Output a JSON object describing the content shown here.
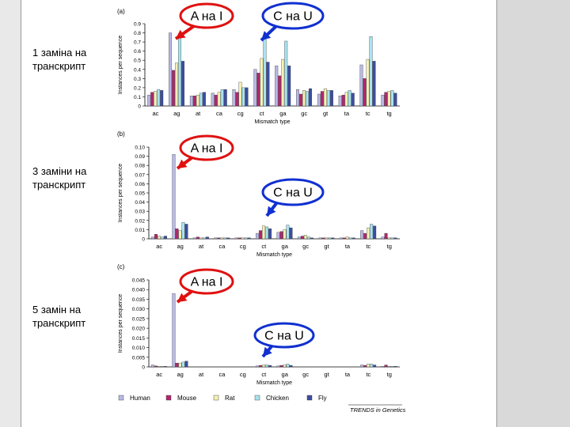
{
  "side_labels": [
    {
      "text": "1 заміна на транскрипт"
    },
    {
      "text": "3 заміни на транскрипт"
    },
    {
      "text": "5 замін на транскрипт"
    }
  ],
  "callouts": {
    "a_to_i": "A на I",
    "c_to_u": "C на U"
  },
  "callout_colors": {
    "a_to_i": "#e01010",
    "c_to_u": "#1030d0"
  },
  "footer": {
    "credit": "TRENDS in Genetics"
  },
  "legend": [
    {
      "name": "Human",
      "color": "#b9b9e6"
    },
    {
      "name": "Mouse",
      "color": "#b0286e"
    },
    {
      "name": "Rat",
      "color": "#f6f0b4"
    },
    {
      "name": "Chicken",
      "color": "#a8e3ef"
    },
    {
      "name": "Fly",
      "color": "#3c4ea0"
    }
  ],
  "chart_data": [
    {
      "type": "bar",
      "panel": "(a)",
      "ylabel": "Instances per sequence",
      "xlabel": "Mismatch type",
      "ylim": [
        0,
        0.9
      ],
      "yticks": [
        "0",
        "0.1",
        "0.2",
        "0.3",
        "0.4",
        "0.5",
        "0.6",
        "0.7",
        "0.8",
        "0.9"
      ],
      "categories": [
        "ac",
        "ag",
        "at",
        "ca",
        "cg",
        "ct",
        "ga",
        "gc",
        "gt",
        "ta",
        "tc",
        "tg"
      ],
      "series": [
        {
          "name": "Human",
          "values": [
            0.12,
            0.8,
            0.11,
            0.14,
            0.18,
            0.4,
            0.44,
            0.18,
            0.13,
            0.11,
            0.45,
            0.12
          ]
        },
        {
          "name": "Mouse",
          "values": [
            0.15,
            0.39,
            0.11,
            0.12,
            0.15,
            0.36,
            0.33,
            0.13,
            0.16,
            0.12,
            0.3,
            0.15
          ]
        },
        {
          "name": "Rat",
          "values": [
            0.16,
            0.47,
            0.12,
            0.15,
            0.26,
            0.52,
            0.51,
            0.17,
            0.19,
            0.15,
            0.51,
            0.16
          ]
        },
        {
          "name": "Chicken",
          "values": [
            0.18,
            0.74,
            0.14,
            0.18,
            0.2,
            0.73,
            0.71,
            0.16,
            0.17,
            0.17,
            0.76,
            0.17
          ]
        },
        {
          "name": "Fly",
          "values": [
            0.17,
            0.49,
            0.15,
            0.18,
            0.2,
            0.48,
            0.44,
            0.19,
            0.17,
            0.14,
            0.49,
            0.14
          ]
        }
      ]
    },
    {
      "type": "bar",
      "panel": "(b)",
      "ylabel": "Instances per sequence",
      "xlabel": "Mismatch type",
      "ylim": [
        0,
        0.1
      ],
      "yticks": [
        "0",
        "0.01",
        "0.02",
        "0.03",
        "0.04",
        "0.05",
        "0.06",
        "0.07",
        "0.08",
        "0.09",
        "0.10"
      ],
      "categories": [
        "ac",
        "ag",
        "at",
        "ca",
        "cg",
        "ct",
        "ga",
        "gc",
        "gt",
        "ta",
        "tc",
        "tg"
      ],
      "series": [
        {
          "name": "Human",
          "values": [
            0.002,
            0.092,
            0.001,
            0.001,
            0.001,
            0.006,
            0.007,
            0.002,
            0.001,
            0.001,
            0.009,
            0.002
          ]
        },
        {
          "name": "Mouse",
          "values": [
            0.005,
            0.011,
            0.002,
            0.001,
            0.001,
            0.009,
            0.008,
            0.003,
            0.001,
            0.001,
            0.006,
            0.006
          ]
        },
        {
          "name": "Rat",
          "values": [
            0.003,
            0.009,
            0.001,
            0.001,
            0.001,
            0.014,
            0.01,
            0.004,
            0.001,
            0.002,
            0.012,
            0.001
          ]
        },
        {
          "name": "Chicken",
          "values": [
            0.002,
            0.018,
            0.001,
            0.001,
            0.001,
            0.013,
            0.015,
            0.002,
            0.001,
            0.001,
            0.016,
            0.001
          ]
        },
        {
          "name": "Fly",
          "values": [
            0.003,
            0.016,
            0.002,
            0.001,
            0.001,
            0.011,
            0.012,
            0.001,
            0.001,
            0.001,
            0.014,
            0.001
          ]
        }
      ]
    },
    {
      "type": "bar",
      "panel": "(c)",
      "ylabel": "Instances per sequence",
      "xlabel": "Mismatch type",
      "ylim": [
        0,
        0.045
      ],
      "yticks": [
        "0",
        "0.005",
        "0.010",
        "0.015",
        "0.020",
        "0.025",
        "0.030",
        "0.035",
        "0.040",
        "0.045"
      ],
      "categories": [
        "ac",
        "ag",
        "at",
        "ca",
        "cg",
        "ct",
        "ga",
        "gc",
        "gt",
        "ta",
        "tc",
        "tg"
      ],
      "series": [
        {
          "name": "Human",
          "values": [
            0.001,
            0.038,
            0.0,
            0.0,
            0.0,
            0.0005,
            0.0005,
            0.0,
            0.0,
            0.0,
            0.001,
            0.0003
          ]
        },
        {
          "name": "Mouse",
          "values": [
            0.0005,
            0.002,
            0.0,
            0.0,
            0.0,
            0.0008,
            0.0008,
            0.0,
            0.0,
            0.0,
            0.0008,
            0.001
          ]
        },
        {
          "name": "Rat",
          "values": [
            0.0003,
            0.002,
            0.0,
            0.0,
            0.0,
            0.001,
            0.001,
            0.0,
            0.0,
            0.0,
            0.0015,
            0.0003
          ]
        },
        {
          "name": "Chicken",
          "values": [
            0.0003,
            0.0025,
            0.0,
            0.0,
            0.0,
            0.001,
            0.0015,
            0.0,
            0.0,
            0.0,
            0.0015,
            0.0003
          ]
        },
        {
          "name": "Fly",
          "values": [
            0.0003,
            0.003,
            0.0,
            0.0,
            0.0,
            0.0008,
            0.0008,
            0.0,
            0.0,
            0.0,
            0.001,
            0.0003
          ]
        }
      ]
    }
  ]
}
